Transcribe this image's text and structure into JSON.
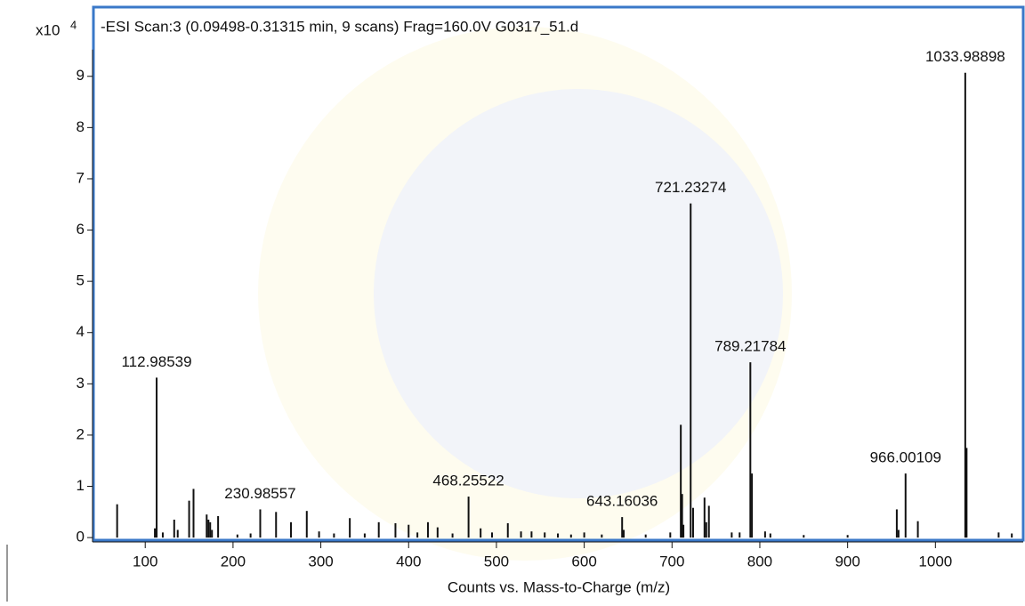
{
  "chart_data": {
    "type": "stick",
    "title": "-ESI Scan:3 (0.09498-0.31315 min, 9 scans) Frag=160.0V G0317_51.d",
    "x_label": "Counts vs. Mass-to-Charge (m/z)",
    "y_multiplier": "x10",
    "y_multiplier_exponent": "4",
    "color": "#111111",
    "frame_color": "#3a78c8",
    "xlim": [
      41,
      1100
    ],
    "ylim": [
      -0.05,
      10.35
    ],
    "xticks": [
      100,
      200,
      300,
      400,
      500,
      600,
      700,
      800,
      900,
      1000
    ],
    "yticks": [
      0,
      1,
      2,
      3,
      4,
      5,
      6,
      7,
      8,
      9
    ],
    "x": [
      68,
      111,
      112.98539,
      120,
      133,
      137,
      150,
      155,
      170,
      172,
      174,
      176,
      183,
      205,
      220,
      230.98557,
      249,
      266,
      284,
      298,
      315,
      333,
      350,
      366,
      385,
      400,
      410,
      422,
      433,
      450,
      468.25522,
      482,
      495,
      513,
      528,
      540,
      555,
      570,
      585,
      600,
      620,
      643.16036,
      645,
      670,
      698,
      710,
      711.5,
      713,
      721.23274,
      724,
      737,
      739,
      742,
      768,
      777,
      789.21784,
      791,
      806,
      812,
      850,
      900,
      956,
      958,
      966.00109,
      980,
      1033.98898,
      1035.5,
      1072,
      1087
    ],
    "values": [
      0.65,
      0.18,
      3.12,
      0.1,
      0.35,
      0.15,
      0.72,
      0.95,
      0.45,
      0.35,
      0.3,
      0.15,
      0.42,
      0.06,
      0.08,
      0.55,
      0.5,
      0.3,
      0.52,
      0.12,
      0.08,
      0.38,
      0.08,
      0.3,
      0.28,
      0.25,
      0.1,
      0.3,
      0.2,
      0.08,
      0.8,
      0.18,
      0.1,
      0.28,
      0.12,
      0.12,
      0.1,
      0.08,
      0.06,
      0.1,
      0.06,
      0.4,
      0.15,
      0.06,
      0.1,
      2.2,
      0.85,
      0.25,
      6.52,
      0.58,
      0.78,
      0.3,
      0.62,
      0.1,
      0.1,
      3.42,
      1.25,
      0.12,
      0.08,
      0.05,
      0.05,
      0.55,
      0.15,
      1.25,
      0.32,
      9.07,
      1.75,
      0.1,
      0.08
    ],
    "x_labels": [
      null,
      null,
      "112.98539",
      null,
      null,
      null,
      null,
      null,
      null,
      null,
      null,
      null,
      null,
      null,
      null,
      "230.98557",
      null,
      null,
      null,
      null,
      null,
      null,
      null,
      null,
      null,
      null,
      null,
      null,
      null,
      null,
      "468.25522",
      null,
      null,
      null,
      null,
      null,
      null,
      null,
      null,
      null,
      null,
      "643.16036",
      null,
      null,
      null,
      null,
      null,
      null,
      "721.23274",
      null,
      null,
      null,
      null,
      null,
      null,
      "789.21784",
      null,
      null,
      null,
      null,
      null,
      null,
      null,
      "966.00109",
      null,
      "1033.98898",
      null,
      null,
      null
    ]
  }
}
